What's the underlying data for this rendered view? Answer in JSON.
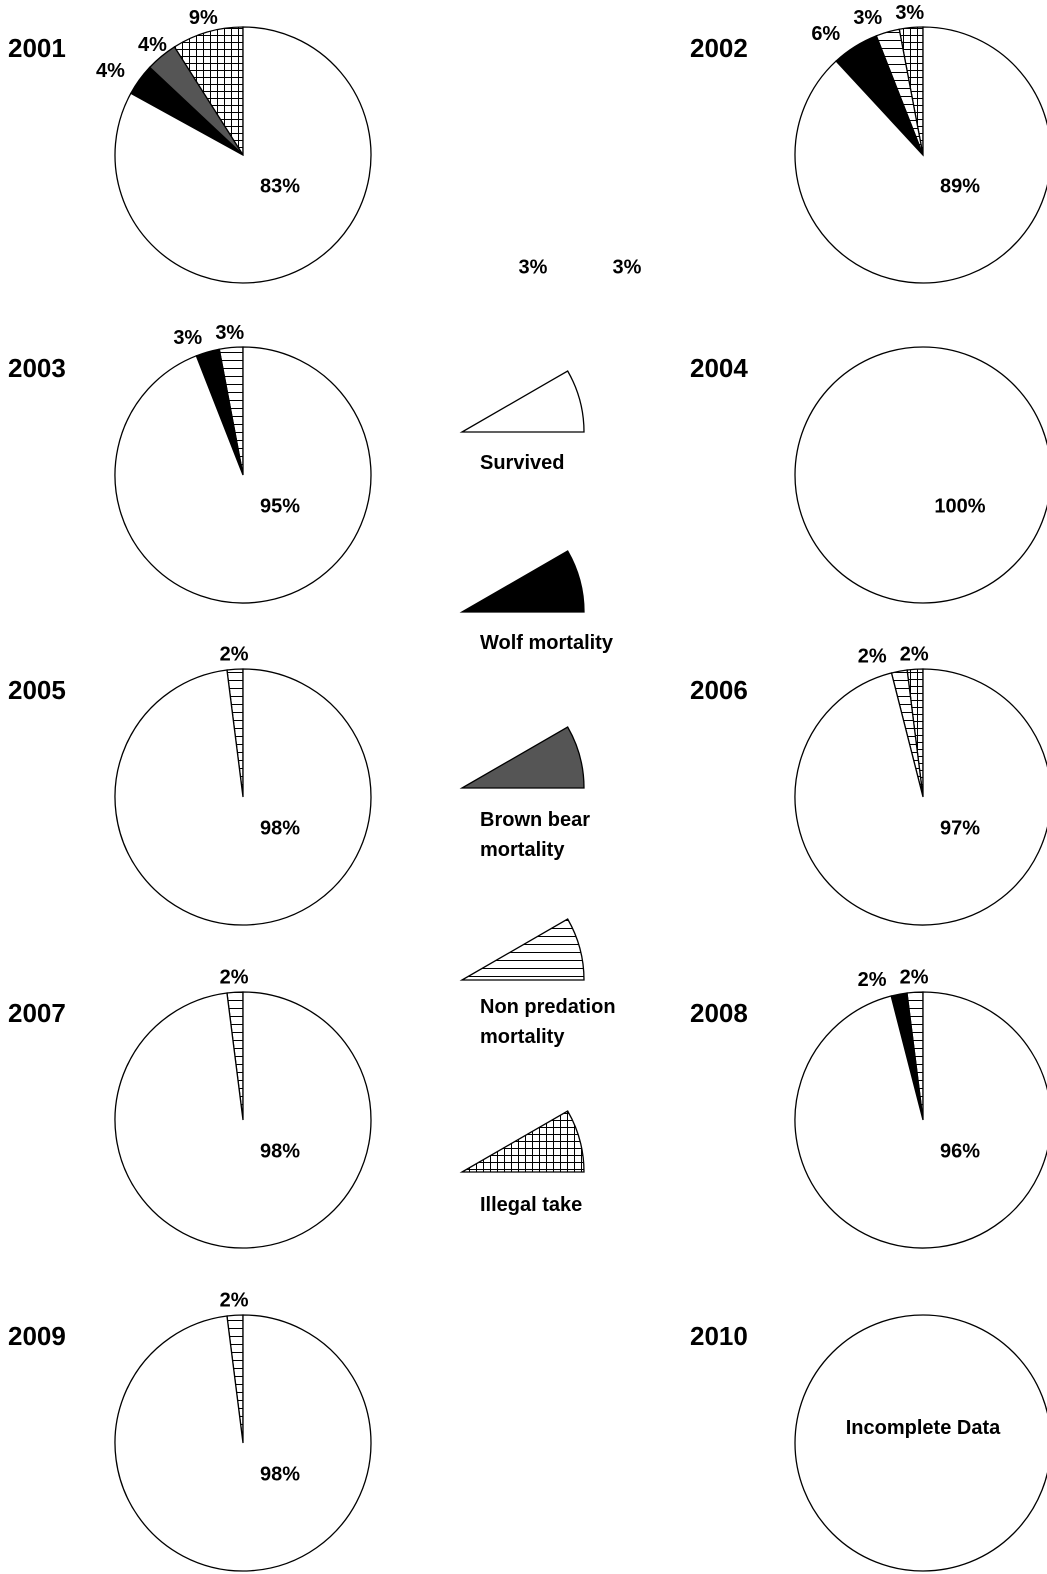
{
  "legend": {
    "categories": [
      "Survived",
      "Wolf mortality",
      "Brown bear mortality",
      "Non predation mortality",
      "Illegal take"
    ],
    "fills": [
      "#ffffff",
      "#000000",
      "#555555",
      "horizontal-lines",
      "grid"
    ]
  },
  "annotations": [
    "3%",
    "3%"
  ],
  "chart_data": [
    {
      "type": "pie",
      "title": "2001",
      "values": [
        83,
        4,
        4,
        null,
        9
      ],
      "value_labels": [
        "83%",
        "4%",
        "4%",
        null,
        "9%"
      ]
    },
    {
      "type": "pie",
      "title": "2002",
      "values": [
        89,
        6,
        null,
        3,
        3
      ],
      "value_labels": [
        "89%",
        "6%",
        null,
        "3%",
        "3%"
      ]
    },
    {
      "type": "pie",
      "title": "2003",
      "values": [
        95,
        3,
        null,
        3,
        null
      ],
      "value_labels": [
        "95%",
        "3%",
        null,
        "3%",
        null
      ]
    },
    {
      "type": "pie",
      "title": "2004",
      "values": [
        100,
        null,
        null,
        null,
        null
      ],
      "value_labels": [
        "100%",
        null,
        null,
        null,
        null
      ]
    },
    {
      "type": "pie",
      "title": "2005",
      "values": [
        98,
        null,
        null,
        2,
        null
      ],
      "value_labels": [
        "98%",
        null,
        null,
        "2%",
        null
      ]
    },
    {
      "type": "pie",
      "title": "2006",
      "values": [
        97,
        null,
        null,
        2,
        2
      ],
      "value_labels": [
        "97%",
        null,
        null,
        "2%",
        "2%"
      ]
    },
    {
      "type": "pie",
      "title": "2007",
      "values": [
        98,
        null,
        null,
        2,
        null
      ],
      "value_labels": [
        "98%",
        null,
        null,
        "2%",
        null
      ]
    },
    {
      "type": "pie",
      "title": "2008",
      "values": [
        96,
        2,
        null,
        2,
        null
      ],
      "value_labels": [
        "96%",
        "2%",
        null,
        "2%",
        null
      ]
    },
    {
      "type": "pie",
      "title": "2009",
      "values": [
        98,
        null,
        null,
        2,
        null
      ],
      "value_labels": [
        "98%",
        null,
        null,
        "2%",
        null
      ]
    },
    {
      "type": "pie",
      "title": "2010",
      "annotation": "Incomplete Data"
    }
  ]
}
